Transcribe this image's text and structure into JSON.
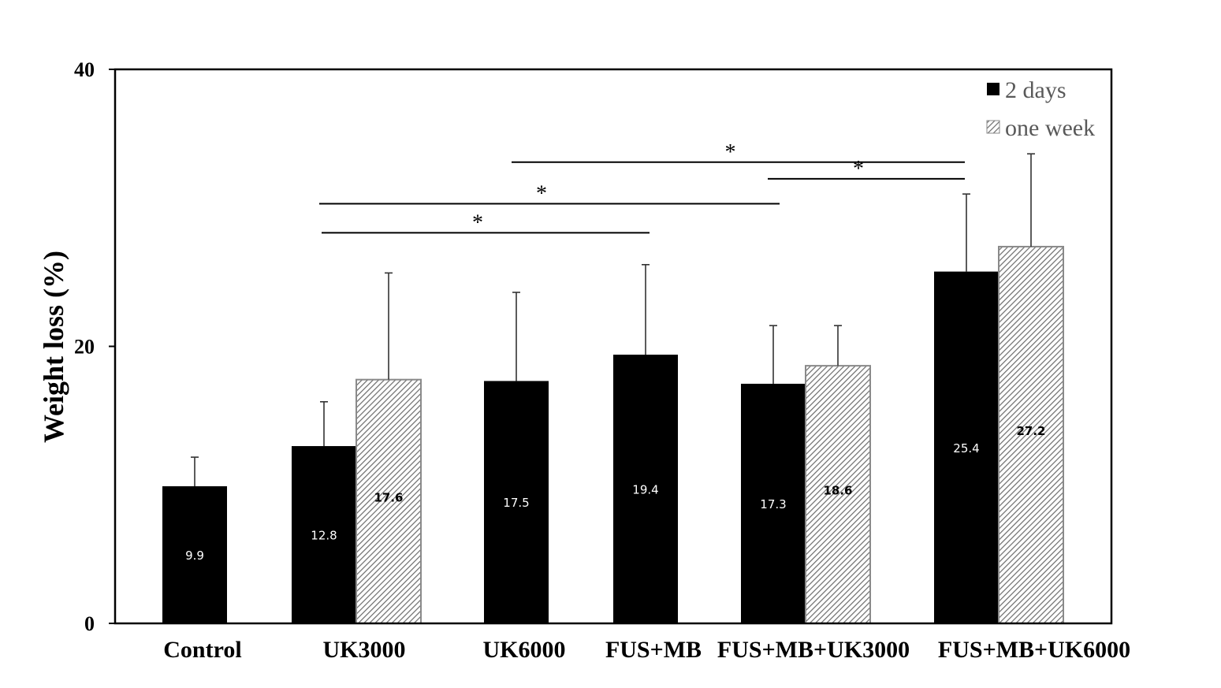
{
  "chart_data": {
    "type": "bar",
    "title": "",
    "xlabel": "",
    "ylabel": "Weight loss (%)",
    "ylim": [
      0,
      40
    ],
    "yticks": [
      "0",
      "20",
      "40"
    ],
    "grid": false,
    "legend_position": "top-right",
    "categories": [
      "Control",
      "UK3000",
      "UK6000",
      "FUS+MB",
      "FUS+MB+UK3000",
      "FUS+MB+UK6000"
    ],
    "series": [
      {
        "name": "2 days",
        "style": "solid",
        "color": "#000000",
        "values": [
          9.9,
          12.8,
          17.5,
          19.4,
          17.3,
          25.4
        ],
        "labels": [
          "9.9",
          "12.8",
          "17.5",
          "19.4",
          "17.3",
          "25.4"
        ],
        "error": [
          2.1,
          3.2,
          6.4,
          6.5,
          4.2,
          5.6
        ]
      },
      {
        "name": "one week",
        "style": "hatched",
        "color": "#8a8a8a",
        "values": [
          null,
          17.6,
          null,
          null,
          18.6,
          27.2
        ],
        "labels": [
          "",
          "17.6",
          "",
          "",
          "18.6",
          "27.2"
        ],
        "error": [
          null,
          7.7,
          null,
          null,
          2.9,
          6.7
        ]
      }
    ],
    "significance": [
      {
        "label": "*",
        "from": 1,
        "to": 3,
        "y": 28.2
      },
      {
        "label": "*",
        "from": 1,
        "to": 4,
        "y": 30.3
      },
      {
        "label": "*",
        "from": 2,
        "to": 5,
        "y": 33.3
      },
      {
        "label": "*",
        "from": 4,
        "to": 5,
        "y": 32.1
      }
    ]
  }
}
